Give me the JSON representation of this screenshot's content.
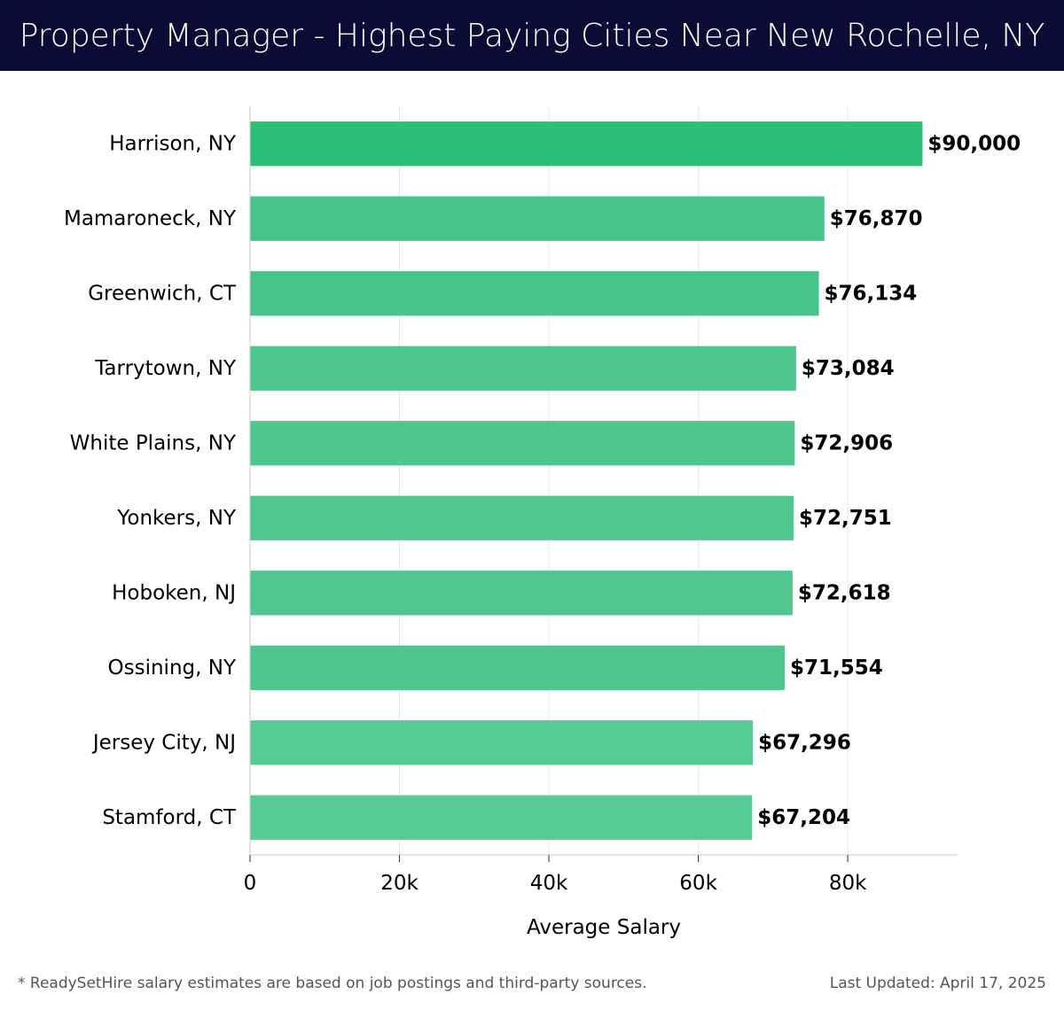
{
  "header": {
    "title": "Property Manager - Highest Paying Cities Near New Rochelle, NY"
  },
  "chart_data": {
    "type": "bar",
    "orientation": "horizontal",
    "categories": [
      "Harrison, NY",
      "Mamaroneck, NY",
      "Greenwich, CT",
      "Tarrytown, NY",
      "White Plains, NY",
      "Yonkers, NY",
      "Hoboken, NJ",
      "Ossining, NY",
      "Jersey City, NJ",
      "Stamford, CT"
    ],
    "values": [
      90000,
      76870,
      76134,
      73084,
      72906,
      72751,
      72618,
      71554,
      67296,
      67204
    ],
    "value_labels": [
      "$90,000",
      "$76,870",
      "$76,134",
      "$73,084",
      "$72,906",
      "$72,751",
      "$72,618",
      "$71,554",
      "$67,296",
      "$67,204"
    ],
    "xlabel": "Average Salary",
    "ylabel": "",
    "xlim": [
      0,
      94700
    ],
    "x_ticks": [
      0,
      20000,
      40000,
      60000,
      80000
    ],
    "x_tick_labels": [
      "0",
      "20k",
      "40k",
      "60k",
      "80k"
    ],
    "grid": "vertical",
    "legend": "none",
    "colors": {
      "top_bar": "#2bbf78",
      "bars": [
        "#2bbf78",
        "#47c48a",
        "#46c489",
        "#4dc78d",
        "#4ec78d",
        "#4fc78e",
        "#4fc78e",
        "#4ec78d",
        "#56cb95",
        "#56cb95"
      ],
      "grid": "#e6e6e6",
      "axis": "#cccccc",
      "text": "#000000"
    }
  },
  "footer": {
    "note": "* ReadySetHire salary estimates are based on job postings and third-party sources.",
    "last_updated": "Last Updated: April 17, 2025"
  }
}
